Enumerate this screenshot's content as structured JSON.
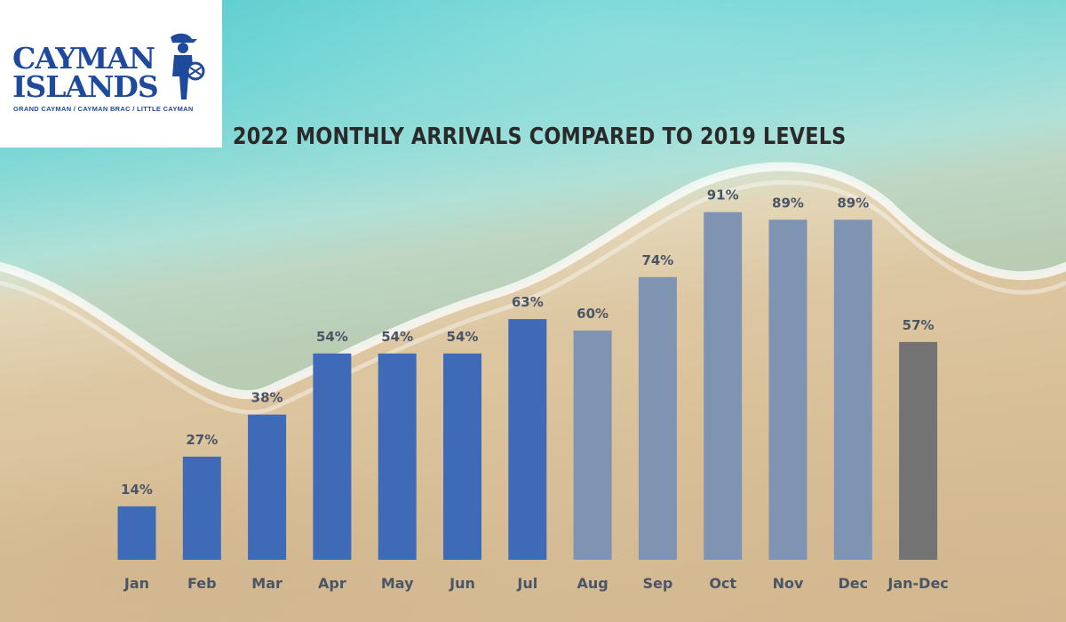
{
  "logo": {
    "line1": "CAYMAN",
    "line2": "ISLANDS",
    "subtitle": "GRAND CAYMAN / CAYMAN BRAC / LITTLE CAYMAN",
    "brand_color": "#1f4a9c"
  },
  "chart_data": {
    "type": "bar",
    "title": "2022 MONTHLY ARRIVALS COMPARED TO 2019 LEVELS",
    "xlabel": "",
    "ylabel": "",
    "ylim": [
      0,
      100
    ],
    "grid": false,
    "categories": [
      "Jan",
      "Feb",
      "Mar",
      "Apr",
      "May",
      "Jun",
      "Jul",
      "Aug",
      "Sep",
      "Oct",
      "Nov",
      "Dec",
      "Jan-Dec"
    ],
    "values": [
      14,
      27,
      38,
      54,
      54,
      54,
      63,
      60,
      74,
      91,
      89,
      89,
      57
    ],
    "labels": [
      "14%",
      "27%",
      "38%",
      "54%",
      "54%",
      "54%",
      "63%",
      "60%",
      "74%",
      "91%",
      "89%",
      "89%",
      "57%"
    ],
    "bar_colors": [
      "#3f6ab8",
      "#3f6ab8",
      "#3f6ab8",
      "#3f6ab8",
      "#3f6ab8",
      "#3f6ab8",
      "#3f6ab8",
      "#7f93b3",
      "#7f93b3",
      "#7f93b3",
      "#7f93b3",
      "#7f93b3",
      "#737373"
    ]
  }
}
